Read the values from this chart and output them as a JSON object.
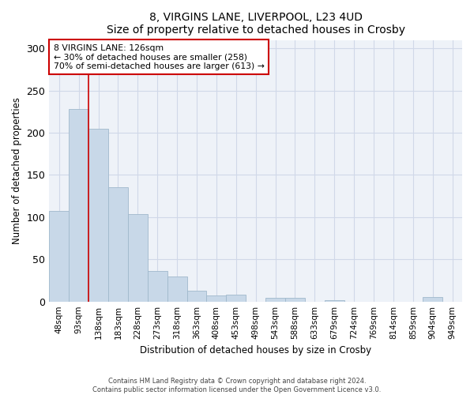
{
  "title_line1": "8, VIRGINS LANE, LIVERPOOL, L23 4UD",
  "title_line2": "Size of property relative to detached houses in Crosby",
  "xlabel": "Distribution of detached houses by size in Crosby",
  "ylabel": "Number of detached properties",
  "categories": [
    "48sqm",
    "93sqm",
    "138sqm",
    "183sqm",
    "228sqm",
    "273sqm",
    "318sqm",
    "363sqm",
    "408sqm",
    "453sqm",
    "498sqm",
    "543sqm",
    "588sqm",
    "633sqm",
    "679sqm",
    "724sqm",
    "769sqm",
    "814sqm",
    "859sqm",
    "904sqm",
    "949sqm"
  ],
  "values": [
    107,
    228,
    205,
    135,
    104,
    36,
    30,
    13,
    7,
    8,
    0,
    4,
    4,
    0,
    2,
    0,
    0,
    0,
    0,
    5,
    0
  ],
  "bar_color": "#c8d8e8",
  "bar_edgecolor": "#a0b8cc",
  "bar_linewidth": 0.6,
  "vline_color": "#cc0000",
  "vline_x": 1.5,
  "annotation_text_line1": "8 VIRGINS LANE: 126sqm",
  "annotation_text_line2": "← 30% of detached houses are smaller (258)",
  "annotation_text_line3": "70% of semi-detached houses are larger (613) →",
  "box_edgecolor": "#cc0000",
  "ylim": [
    0,
    310
  ],
  "yticks": [
    0,
    50,
    100,
    150,
    200,
    250,
    300
  ],
  "grid_color": "#d0d8e8",
  "background_color": "#eef2f8",
  "footer_line1": "Contains HM Land Registry data © Crown copyright and database right 2024.",
  "footer_line2": "Contains public sector information licensed under the Open Government Licence v3.0."
}
